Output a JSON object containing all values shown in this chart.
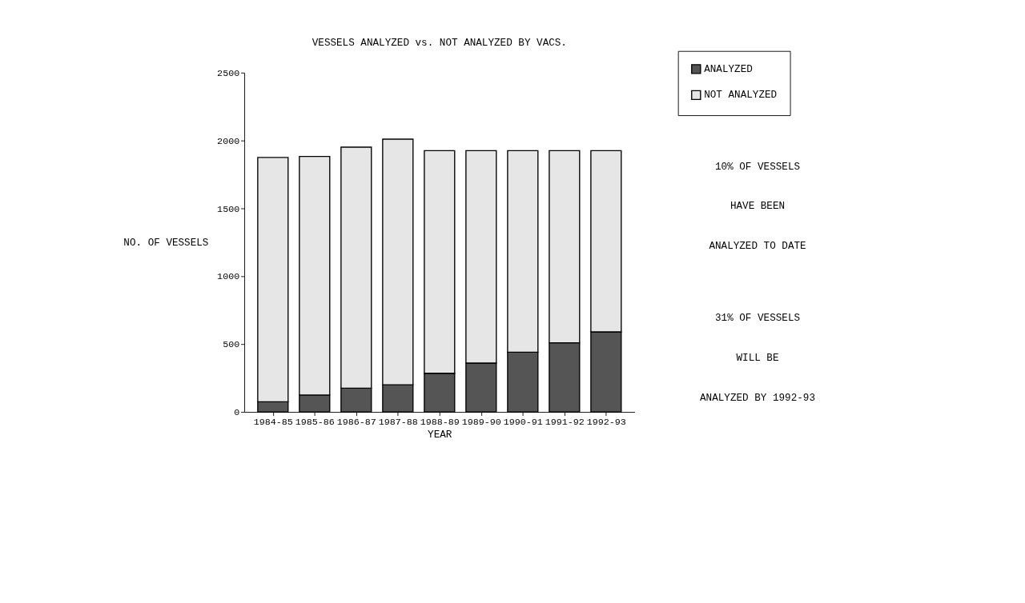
{
  "chart_data": {
    "type": "bar",
    "title": "VESSELS ANALYZED vs. NOT ANALYZED BY VACS.",
    "xlabel": "YEAR",
    "ylabel": "NO. OF VESSELS",
    "categories": [
      "1984-85",
      "1985-86",
      "1986-87",
      "1987-88",
      "1988-89",
      "1989-90",
      "1990-91",
      "1991-92",
      "1992-93"
    ],
    "stacked": true,
    "series": [
      {
        "name": "ANALYZED",
        "color": "#555555",
        "values": [
          75,
          125,
          175,
          200,
          285,
          360,
          440,
          510,
          590
        ]
      },
      {
        "name": "NOT ANALYZED",
        "color": "#e6e6e6",
        "values": [
          1800,
          1758,
          1776,
          1810,
          1640,
          1565,
          1485,
          1415,
          1335
        ]
      }
    ],
    "ylim": [
      0,
      2500
    ],
    "yticks": [
      0,
      500,
      1000,
      1500,
      2000,
      2500
    ],
    "grid": false,
    "legend": "top right",
    "annotations": [
      "10% OF VESSELS",
      "HAVE BEEN",
      "ANALYZED TO DATE",
      "31% OF VESSELS",
      "WILL BE",
      "ANALYZED BY 1992-93"
    ]
  }
}
